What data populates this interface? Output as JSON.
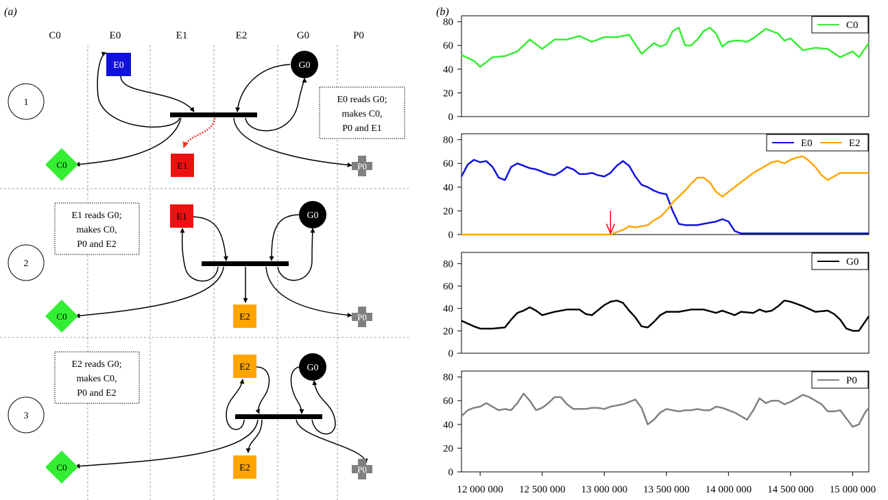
{
  "panel_a": {
    "label": "(a)",
    "columns": [
      "C0",
      "E0",
      "E1",
      "E2",
      "G0",
      "P0"
    ],
    "steps": [
      {
        "number": "1",
        "note": [
          "E0 reads G0;",
          "makes C0,",
          "P0 and E1"
        ],
        "nodes": {
          "reader": "E0",
          "g": "G0",
          "c": "C0",
          "e": "E1",
          "p": "P0"
        }
      },
      {
        "number": "2",
        "note": [
          "E1 reads G0;",
          "makes C0,",
          "P0 and E2"
        ],
        "nodes": {
          "reader": "E1",
          "g": "G0",
          "c": "C0",
          "e": "E2",
          "p": "P0"
        }
      },
      {
        "number": "3",
        "note": [
          "E2 reads G0;",
          "makes C0,",
          "P0 and E2"
        ],
        "nodes": {
          "reader": "E2",
          "g": "G0",
          "c": "C0",
          "e": "E2",
          "p": "P0"
        }
      }
    ],
    "colors": {
      "C0": "#33ee33",
      "E0": "#1111dd",
      "E1": "#ee1111",
      "E2": "#ffa500",
      "G0": "#000000",
      "P0": "#808080",
      "mutation_arrow": "#ff3333"
    }
  },
  "panel_b": {
    "label": "(b)",
    "x_ticks": [
      "12 000 000",
      "12 500 000",
      "13 000 000",
      "13 500 000",
      "14 000 000",
      "14 500 000",
      "15 000 000"
    ],
    "annotation_arrow_color": "#ff0000"
  },
  "chart_data": [
    {
      "type": "line",
      "title": "",
      "xlabel": "",
      "ylabel": "",
      "xlim": [
        11850000,
        15130000
      ],
      "ylim": [
        0,
        85
      ],
      "yticks": [
        "0",
        "20",
        "40",
        "60",
        "80"
      ],
      "x": [
        11850000,
        11950000,
        12000000,
        12100000,
        12200000,
        12300000,
        12350000,
        12400000,
        12500000,
        12600000,
        12700000,
        12800000,
        12900000,
        13000000,
        13100000,
        13200000,
        13300000,
        13400000,
        13450000,
        13500000,
        13550000,
        13600000,
        13650000,
        13700000,
        13750000,
        13800000,
        13850000,
        13900000,
        13950000,
        14000000,
        14050000,
        14100000,
        14150000,
        14200000,
        14300000,
        14400000,
        14450000,
        14500000,
        14600000,
        14700000,
        14800000,
        14900000,
        15000000,
        15050000,
        15130000
      ],
      "series": [
        {
          "name": "C0",
          "color": "#33ee33",
          "values": [
            52,
            47,
            42,
            50,
            51,
            55,
            60,
            65,
            57,
            65,
            65,
            68,
            63,
            67,
            67,
            69,
            53,
            62,
            59,
            61,
            72,
            75,
            60,
            60,
            65,
            72,
            75,
            70,
            59,
            63,
            64,
            64,
            63,
            66,
            74,
            70,
            64,
            66,
            56,
            58,
            57,
            50,
            55,
            50,
            62
          ]
        }
      ]
    },
    {
      "type": "line",
      "title": "",
      "xlabel": "",
      "ylabel": "",
      "xlim": [
        11850000,
        15130000
      ],
      "ylim": [
        0,
        85
      ],
      "yticks": [
        "0",
        "20",
        "40",
        "60",
        "80"
      ],
      "x": [
        11850000,
        11900000,
        11950000,
        12000000,
        12050000,
        12100000,
        12150000,
        12200000,
        12250000,
        12300000,
        12350000,
        12400000,
        12450000,
        12500000,
        12550000,
        12600000,
        12650000,
        12700000,
        12750000,
        12800000,
        12850000,
        12900000,
        12950000,
        13000000,
        13050000,
        13100000,
        13150000,
        13200000,
        13250000,
        13300000,
        13350000,
        13400000,
        13450000,
        13500000,
        13550000,
        13600000,
        13650000,
        13700000,
        13750000,
        13800000,
        13850000,
        13900000,
        13950000,
        14000000,
        14050000,
        14100000,
        14150000,
        14200000,
        14250000,
        14300000,
        14350000,
        14400000,
        14450000,
        14500000,
        14550000,
        14600000,
        14650000,
        14700000,
        14750000,
        14800000,
        14850000,
        14900000,
        14950000,
        15000000,
        15050000,
        15100000,
        15130000
      ],
      "series": [
        {
          "name": "E0",
          "color": "#1111dd",
          "values": [
            49,
            59,
            63,
            61,
            62,
            57,
            48,
            46,
            57,
            60,
            58,
            56,
            55,
            53,
            51,
            50,
            53,
            57,
            55,
            51,
            51,
            52,
            50,
            49,
            52,
            58,
            62,
            58,
            49,
            42,
            40,
            37,
            35,
            34,
            20,
            9,
            8,
            8,
            8,
            9,
            10,
            11,
            13,
            11,
            3,
            1,
            1,
            1,
            1,
            1,
            1,
            1,
            1,
            1,
            1,
            1,
            1,
            1,
            1,
            1,
            1,
            1,
            1,
            1,
            1,
            1,
            1
          ]
        },
        {
          "name": "E2",
          "color": "#ffa500",
          "values": [
            0,
            0,
            0,
            0,
            0,
            0,
            0,
            0,
            0,
            0,
            0,
            0,
            0,
            0,
            0,
            0,
            0,
            0,
            0,
            0,
            0,
            0,
            0,
            0,
            0,
            2,
            4,
            7,
            6,
            7,
            8,
            12,
            15,
            20,
            27,
            32,
            37,
            43,
            48,
            48,
            44,
            36,
            32,
            36,
            40,
            44,
            48,
            52,
            55,
            58,
            61,
            62,
            60,
            63,
            65,
            66,
            62,
            57,
            50,
            46,
            49,
            52,
            52,
            52,
            52,
            52,
            52
          ]
        }
      ],
      "annotation": {
        "type": "arrow",
        "x": 13050000,
        "y_from": 20,
        "y_to": 1
      }
    },
    {
      "type": "line",
      "title": "",
      "xlabel": "",
      "ylabel": "",
      "xlim": [
        11850000,
        15130000
      ],
      "ylim": [
        0,
        90
      ],
      "yticks": [
        "0",
        "20",
        "40",
        "60",
        "80"
      ],
      "x": [
        11850000,
        11950000,
        12000000,
        12100000,
        12200000,
        12250000,
        12300000,
        12350000,
        12400000,
        12450000,
        12500000,
        12600000,
        12700000,
        12800000,
        12850000,
        12900000,
        13000000,
        13050000,
        13100000,
        13150000,
        13200000,
        13250000,
        13300000,
        13350000,
        13400000,
        13450000,
        13500000,
        13600000,
        13700000,
        13800000,
        13900000,
        13950000,
        14000000,
        14050000,
        14100000,
        14200000,
        14250000,
        14300000,
        14350000,
        14400000,
        14450000,
        14500000,
        14550000,
        14600000,
        14700000,
        14800000,
        14850000,
        14900000,
        14950000,
        15000000,
        15050000,
        15130000
      ],
      "series": [
        {
          "name": "G0",
          "color": "#000000",
          "values": [
            29,
            24,
            22,
            22,
            23,
            30,
            36,
            38,
            41,
            38,
            34,
            37,
            39,
            39,
            35,
            34,
            43,
            46,
            47,
            45,
            38,
            32,
            24,
            23,
            28,
            34,
            37,
            37,
            39,
            39,
            36,
            38,
            36,
            34,
            37,
            36,
            39,
            37,
            38,
            42,
            47,
            46,
            44,
            42,
            37,
            38,
            35,
            30,
            22,
            20,
            20,
            33
          ]
        }
      ]
    },
    {
      "type": "line",
      "title": "",
      "xlabel": "",
      "ylabel": "",
      "xlim": [
        11850000,
        15130000
      ],
      "ylim": [
        0,
        85
      ],
      "yticks": [
        "0",
        "20",
        "40",
        "60",
        "80"
      ],
      "x": [
        11850000,
        11900000,
        11950000,
        12000000,
        12050000,
        12100000,
        12150000,
        12200000,
        12250000,
        12300000,
        12350000,
        12400000,
        12450000,
        12500000,
        12550000,
        12600000,
        12650000,
        12700000,
        12750000,
        12800000,
        12850000,
        12900000,
        12950000,
        13000000,
        13050000,
        13100000,
        13150000,
        13200000,
        13250000,
        13300000,
        13350000,
        13400000,
        13450000,
        13500000,
        13550000,
        13600000,
        13650000,
        13700000,
        13750000,
        13800000,
        13850000,
        13900000,
        13950000,
        14000000,
        14050000,
        14100000,
        14150000,
        14200000,
        14250000,
        14300000,
        14350000,
        14400000,
        14450000,
        14500000,
        14550000,
        14600000,
        14650000,
        14700000,
        14750000,
        14800000,
        14850000,
        14900000,
        14950000,
        15000000,
        15050000,
        15100000,
        15130000
      ],
      "series": [
        {
          "name": "P0",
          "color": "#808080",
          "values": [
            47,
            52,
            54,
            55,
            58,
            55,
            52,
            53,
            52,
            58,
            66,
            60,
            52,
            54,
            58,
            63,
            63,
            57,
            53,
            53,
            53,
            54,
            54,
            53,
            55,
            56,
            57,
            59,
            61,
            54,
            40,
            44,
            50,
            53,
            52,
            51,
            52,
            52,
            53,
            52,
            52,
            55,
            54,
            52,
            50,
            47,
            44,
            52,
            62,
            58,
            60,
            60,
            57,
            59,
            62,
            65,
            63,
            60,
            57,
            51,
            51,
            52,
            45,
            38,
            40,
            50,
            54
          ]
        }
      ]
    }
  ]
}
